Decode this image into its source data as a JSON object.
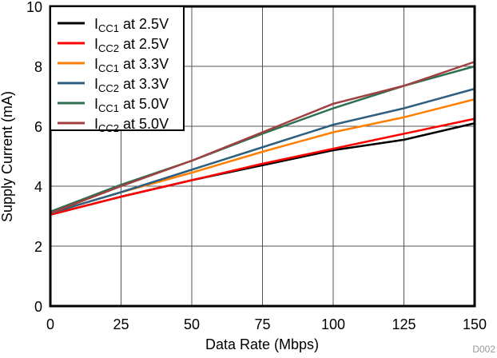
{
  "chart_data": {
    "type": "line",
    "xlabel": "Data Rate (Mbps)",
    "ylabel": "Supply Current (mA)",
    "xlim": [
      0,
      150
    ],
    "ylim": [
      0,
      10
    ],
    "xticks": [
      0,
      25,
      50,
      75,
      100,
      125,
      150
    ],
    "yticks": [
      0,
      2,
      4,
      6,
      8,
      10
    ],
    "grid": true,
    "legend_position": "top-left",
    "watermark": "D002",
    "x": [
      0,
      25,
      50,
      75,
      100,
      125,
      150
    ],
    "series": [
      {
        "name": "ICC1 at 2.5V",
        "label_main": "I",
        "label_sub": "CC1",
        "label_rest": " at 2.5V",
        "color": "#000000",
        "values": [
          3.05,
          3.65,
          4.2,
          4.7,
          5.2,
          5.55,
          6.1
        ]
      },
      {
        "name": "ICC2 at 2.5V",
        "label_main": "I",
        "label_sub": "CC2",
        "label_rest": " at 2.5V",
        "color": "#ff0000",
        "values": [
          3.05,
          3.65,
          4.2,
          4.75,
          5.25,
          5.75,
          6.25
        ]
      },
      {
        "name": "ICC1 at 3.3V",
        "label_main": "I",
        "label_sub": "CC1",
        "label_rest": " at 3.3V",
        "color": "#ff7f00",
        "values": [
          3.1,
          3.8,
          4.45,
          5.15,
          5.8,
          6.3,
          6.9
        ]
      },
      {
        "name": "ICC2 at 3.3V",
        "label_main": "I",
        "label_sub": "CC2",
        "label_rest": " at 3.3V",
        "color": "#2e5f7e",
        "values": [
          3.1,
          3.8,
          4.55,
          5.3,
          6.05,
          6.6,
          7.25
        ]
      },
      {
        "name": "ICC1 at 5.0V",
        "label_main": "I",
        "label_sub": "CC1",
        "label_rest": " at 5.0V",
        "color": "#2e7050",
        "values": [
          3.15,
          4.05,
          4.85,
          5.75,
          6.6,
          7.35,
          8.0
        ]
      },
      {
        "name": "ICC2 at 5.0V",
        "label_main": "I",
        "label_sub": "CC2",
        "label_rest": " at 5.0V",
        "color": "#a04040",
        "values": [
          3.1,
          4.0,
          4.85,
          5.8,
          6.75,
          7.35,
          8.15
        ]
      }
    ]
  }
}
